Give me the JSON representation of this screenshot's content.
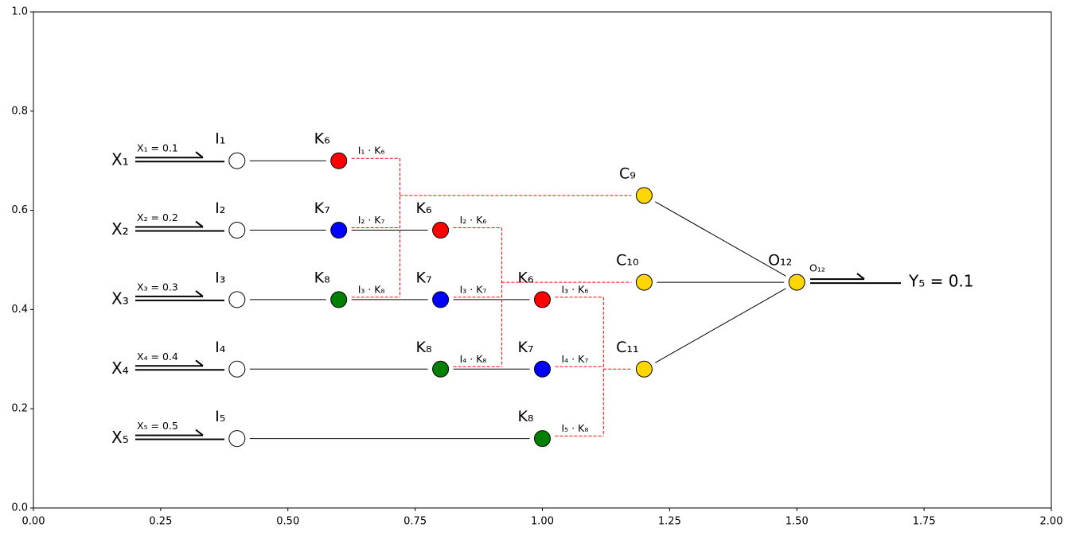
{
  "chart_data": {
    "type": "network",
    "xlim": [
      0,
      2
    ],
    "ylim": [
      0,
      1
    ],
    "xticks": [
      {
        "value": 0,
        "label": "0.00"
      },
      {
        "value": 0.25,
        "label": "0.25"
      },
      {
        "value": 0.5,
        "label": "0.50"
      },
      {
        "value": 0.75,
        "label": "0.75"
      },
      {
        "value": 1,
        "label": "1.00"
      },
      {
        "value": 1.25,
        "label": "1.25"
      },
      {
        "value": 1.5,
        "label": "1.50"
      },
      {
        "value": 1.75,
        "label": "1.75"
      },
      {
        "value": 2,
        "label": "2.00"
      }
    ],
    "yticks": [
      {
        "value": 0,
        "label": "0.0"
      },
      {
        "value": 0.2,
        "label": "0.2"
      },
      {
        "value": 0.4,
        "label": "0.4"
      },
      {
        "value": 0.6,
        "label": "0.6"
      },
      {
        "value": 0.8,
        "label": "0.8"
      },
      {
        "value": 1,
        "label": "1.0"
      }
    ],
    "inputs": [
      {
        "name": "X₁",
        "label": "X₁ = 0.1",
        "y": 0.7
      },
      {
        "name": "X₂",
        "label": "X₂ = 0.2",
        "y": 0.56
      },
      {
        "name": "X₃",
        "label": "X₃ = 0.3",
        "y": 0.42
      },
      {
        "name": "X₄",
        "label": "X₄ = 0.4",
        "y": 0.28
      },
      {
        "name": "X₅",
        "label": "X₅ = 0.5",
        "y": 0.14
      }
    ],
    "nodes": [
      {
        "label": "I₁",
        "x": 0.4,
        "y": 0.7,
        "color": "#ffffff"
      },
      {
        "label": "I₂",
        "x": 0.4,
        "y": 0.56,
        "color": "#ffffff"
      },
      {
        "label": "I₃",
        "x": 0.4,
        "y": 0.42,
        "color": "#ffffff"
      },
      {
        "label": "I₄",
        "x": 0.4,
        "y": 0.28,
        "color": "#ffffff"
      },
      {
        "label": "I₅",
        "x": 0.4,
        "y": 0.14,
        "color": "#ffffff"
      },
      {
        "label": "K₆",
        "x": 0.6,
        "y": 0.7,
        "color": "#ff0000",
        "product": "I₁ · K₆"
      },
      {
        "label": "K₇",
        "x": 0.6,
        "y": 0.56,
        "color": "#0000ff",
        "product": "I₂ · K₇"
      },
      {
        "label": "K₈",
        "x": 0.6,
        "y": 0.42,
        "color": "#008000",
        "product": "I₃ · K₈"
      },
      {
        "label": "K₆",
        "x": 0.8,
        "y": 0.56,
        "color": "#ff0000",
        "product": "I₂ · K₆"
      },
      {
        "label": "K₇",
        "x": 0.8,
        "y": 0.42,
        "color": "#0000ff",
        "product": "I₃ · K₇"
      },
      {
        "label": "K₈",
        "x": 0.8,
        "y": 0.28,
        "color": "#008000",
        "product": "I₄ · K₈"
      },
      {
        "label": "K₆",
        "x": 1.0,
        "y": 0.42,
        "color": "#ff0000",
        "product": "I₃ · K₆"
      },
      {
        "label": "K₇",
        "x": 1.0,
        "y": 0.28,
        "color": "#0000ff",
        "product": "I₄ · K₇"
      },
      {
        "label": "K₈",
        "x": 1.0,
        "y": 0.14,
        "color": "#008000",
        "product": "I₅ · K₈"
      },
      {
        "label": "C₉",
        "x": 1.2,
        "y": 0.63,
        "color": "#ffd700"
      },
      {
        "label": "C₁₀",
        "x": 1.2,
        "y": 0.455,
        "color": "#ffd700"
      },
      {
        "label": "C₁₁",
        "x": 1.2,
        "y": 0.28,
        "color": "#ffd700"
      },
      {
        "label": "O₁₂",
        "x": 1.5,
        "y": 0.455,
        "color": "#ffd700"
      }
    ],
    "output": {
      "arrow_label": "O₁₂",
      "label": "Y₅ = 0.1"
    }
  }
}
